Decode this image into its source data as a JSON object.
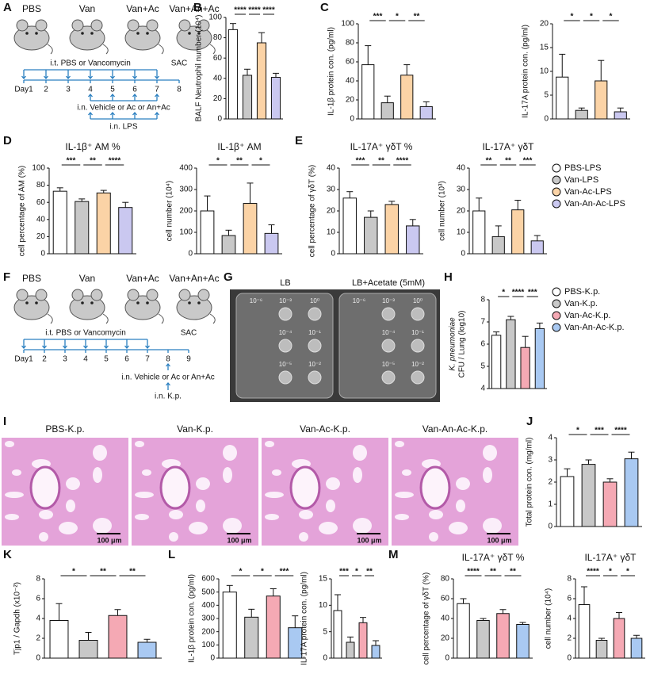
{
  "panel_letters": [
    "A",
    "B",
    "C",
    "D",
    "E",
    "F",
    "G",
    "H",
    "I",
    "J",
    "K",
    "L",
    "M"
  ],
  "scheme_a": {
    "groups": [
      "PBS",
      "Van",
      "Van+Ac",
      "Van+An+Ac"
    ],
    "it_text": "i.t. PBS or Vancomycin",
    "end": "SAC",
    "days": [
      "Day1",
      "2",
      "3",
      "4",
      "5",
      "6",
      "7",
      "8"
    ],
    "in_text": "i.n. Vehicle or Ac or An+Ac",
    "challenge": "i.n. LPS"
  },
  "scheme_f": {
    "groups": [
      "PBS",
      "Van",
      "Van+Ac",
      "Van+An+Ac"
    ],
    "it_text": "i.t. PBS or Vancomycin",
    "end": "SAC",
    "days": [
      "Day1",
      "2",
      "3",
      "4",
      "5",
      "6",
      "7",
      "8",
      "9"
    ],
    "in_text": "i.n. Vehicle or Ac or An+Ac",
    "challenge": "i.n. K.p."
  },
  "plates": {
    "titles": [
      "LB",
      "LB+Acetate (5mM)"
    ],
    "left": [
      "10⁻⁶",
      "10⁻³",
      "10⁰",
      "10⁻⁴",
      "10⁻¹",
      "10⁻⁵",
      "10⁻²"
    ],
    "right": [
      "10⁻⁶",
      "10⁻³",
      "10⁰",
      "10⁻⁴",
      "10⁻¹",
      "10⁻⁵",
      "10⁻²"
    ]
  },
  "histology": {
    "titles": [
      "PBS-K.p.",
      "Van-K.p.",
      "Van-Ac-K.p.",
      "Van-An-Ac-K.p."
    ],
    "scale": "100 μm"
  },
  "legend_lps": {
    "names": [
      "PBS-LPS",
      "Van-LPS",
      "Van-Ac-LPS",
      "Van-An-Ac-LPS"
    ],
    "colors": [
      "#ffffff",
      "#c8c8c8",
      "#fbd3a6",
      "#cac8f0"
    ]
  },
  "legend_kp": {
    "names": [
      "PBS-K.p.",
      "Van-K.p.",
      "Van-Ac-K.p.",
      "Van-An-Ac-K.p."
    ],
    "colors": [
      "#ffffff",
      "#c8c8c8",
      "#f5a9b4",
      "#a9c9f2"
    ]
  },
  "chart_data": [
    {
      "type": "bar",
      "ylabel": "BALF Neutrophil number (10⁴)",
      "values": [
        88,
        43,
        75,
        41
      ],
      "errors": [
        6,
        6,
        10,
        4
      ],
      "colors": [
        "#ffffff",
        "#c8c8c8",
        "#fbd3a6",
        "#cac8f0"
      ],
      "ylim": [
        0,
        100
      ],
      "yticks": [
        0,
        20,
        40,
        60,
        80,
        100
      ],
      "significance": [
        "****",
        "****",
        "****"
      ]
    },
    {
      "type": "bar",
      "ylabel": "IL-1β protein con. (pg/ml)",
      "values": [
        57,
        17,
        46,
        13
      ],
      "errors": [
        20,
        7,
        11,
        5
      ],
      "colors": [
        "#ffffff",
        "#c8c8c8",
        "#fbd3a6",
        "#cac8f0"
      ],
      "ylim": [
        0,
        100
      ],
      "yticks": [
        0,
        20,
        40,
        60,
        80,
        100
      ],
      "significance": [
        "***",
        "*",
        "**"
      ]
    },
    {
      "type": "bar",
      "ylabel": "IL-17A protein con. (pg/ml)",
      "values": [
        8.8,
        1.8,
        8,
        1.5
      ],
      "errors": [
        4.8,
        0.5,
        4.3,
        0.8
      ],
      "colors": [
        "#ffffff",
        "#c8c8c8",
        "#fbd3a6",
        "#cac8f0"
      ],
      "ylim": [
        0,
        20
      ],
      "yticks": [
        0,
        5,
        10,
        15,
        20
      ],
      "significance": [
        "*",
        "*",
        "*"
      ]
    },
    {
      "type": "bar",
      "title": "IL-1β⁺ AM %",
      "ylabel": "cell percentage of AM (%)",
      "values": [
        73,
        61,
        71,
        54
      ],
      "errors": [
        4,
        3,
        3,
        6
      ],
      "colors": [
        "#ffffff",
        "#c8c8c8",
        "#fbd3a6",
        "#cac8f0"
      ],
      "ylim": [
        0,
        100
      ],
      "yticks": [
        0,
        20,
        40,
        60,
        80,
        100
      ],
      "significance": [
        "***",
        "**",
        "****"
      ]
    },
    {
      "type": "bar",
      "title": "IL-1β⁺ AM",
      "ylabel": "cell number (10⁴)",
      "values": [
        200,
        85,
        235,
        95
      ],
      "errors": [
        70,
        25,
        95,
        40
      ],
      "colors": [
        "#ffffff",
        "#c8c8c8",
        "#fbd3a6",
        "#cac8f0"
      ],
      "ylim": [
        0,
        400
      ],
      "yticks": [
        0,
        100,
        200,
        300,
        400
      ],
      "significance": [
        "*",
        "**",
        "*"
      ]
    },
    {
      "type": "bar",
      "title": "IL-17A⁺ γδT %",
      "ylabel": "cell percentage of γδT (%)",
      "values": [
        26,
        17,
        23,
        13
      ],
      "errors": [
        3,
        3,
        1.5,
        3
      ],
      "colors": [
        "#ffffff",
        "#c8c8c8",
        "#fbd3a6",
        "#cac8f0"
      ],
      "ylim": [
        0,
        40
      ],
      "yticks": [
        0,
        10,
        20,
        30,
        40
      ],
      "significance": [
        "***",
        "**",
        "****"
      ]
    },
    {
      "type": "bar",
      "title": "IL-17A⁺ γδT",
      "ylabel": "cell number (10³)",
      "values": [
        20,
        8,
        20.5,
        6
      ],
      "errors": [
        6,
        5,
        4.5,
        2.5
      ],
      "colors": [
        "#ffffff",
        "#c8c8c8",
        "#fbd3a6",
        "#cac8f0"
      ],
      "ylim": [
        0,
        40
      ],
      "yticks": [
        0,
        10,
        20,
        30,
        40
      ],
      "significance": [
        "**",
        "**",
        "***"
      ]
    },
    {
      "type": "bar",
      "ylabel": [
        "K. pneumoniae",
        "CFU / Lung (log10)"
      ],
      "values": [
        6.4,
        7.1,
        5.85,
        6.7
      ],
      "errors": [
        0.15,
        0.15,
        0.5,
        0.25
      ],
      "colors": [
        "#ffffff",
        "#c8c8c8",
        "#f5a9b4",
        "#a9c9f2"
      ],
      "ylim": [
        4,
        8
      ],
      "yticks": [
        4,
        5,
        6,
        7,
        8
      ],
      "significance": [
        "*",
        "****",
        "***"
      ]
    },
    {
      "type": "bar",
      "ylabel": "Total protein con. (mg/ml)",
      "values": [
        2.25,
        2.8,
        2.0,
        3.05
      ],
      "errors": [
        0.35,
        0.2,
        0.15,
        0.3
      ],
      "colors": [
        "#ffffff",
        "#c8c8c8",
        "#f5a9b4",
        "#a9c9f2"
      ],
      "ylim": [
        0,
        4
      ],
      "yticks": [
        0,
        1,
        2,
        3,
        4
      ],
      "significance": [
        "*",
        "***",
        "****"
      ]
    },
    {
      "type": "bar",
      "ylabel": "Tjp1 / Gapdh (x10⁻²)",
      "values": [
        3.8,
        1.8,
        4.3,
        1.6
      ],
      "errors": [
        1.7,
        0.8,
        0.6,
        0.3
      ],
      "colors": [
        "#ffffff",
        "#c8c8c8",
        "#f5a9b4",
        "#a9c9f2"
      ],
      "ylim": [
        0,
        8
      ],
      "yticks": [
        0,
        2,
        4,
        6,
        8
      ],
      "significance": [
        "*",
        "**",
        "**"
      ]
    },
    {
      "type": "bar",
      "ylabel": "IL-1β protein con. (pg/ml)",
      "values": [
        500,
        310,
        470,
        230
      ],
      "errors": [
        50,
        60,
        55,
        90
      ],
      "colors": [
        "#ffffff",
        "#c8c8c8",
        "#f5a9b4",
        "#a9c9f2"
      ],
      "ylim": [
        0,
        600
      ],
      "yticks": [
        0,
        100,
        200,
        300,
        400,
        500,
        600
      ],
      "significance": [
        "*",
        "*",
        "***"
      ]
    },
    {
      "type": "bar",
      "ylabel": "IL-17A protein con. (pg/ml)",
      "values": [
        9,
        3,
        6.7,
        2.4
      ],
      "errors": [
        3,
        1,
        1,
        0.9
      ],
      "colors": [
        "#ffffff",
        "#c8c8c8",
        "#f5a9b4",
        "#a9c9f2"
      ],
      "ylim": [
        0,
        15
      ],
      "yticks": [
        0,
        5,
        10,
        15
      ],
      "significance": [
        "***",
        "*",
        "**"
      ]
    },
    {
      "type": "bar",
      "title": "IL-17A⁺ γδT %",
      "ylabel": "cell percentage of γδT (%)",
      "values": [
        55,
        38,
        45,
        34
      ],
      "errors": [
        5,
        2,
        4,
        2
      ],
      "colors": [
        "#ffffff",
        "#c8c8c8",
        "#f5a9b4",
        "#a9c9f2"
      ],
      "ylim": [
        0,
        80
      ],
      "yticks": [
        0,
        20,
        40,
        60,
        80
      ],
      "significance": [
        "****",
        "**",
        "**"
      ]
    },
    {
      "type": "bar",
      "title": "IL-17A⁺ γδT",
      "ylabel": "cell number (10⁴)",
      "values": [
        5.4,
        1.8,
        4,
        2
      ],
      "errors": [
        1.8,
        0.2,
        0.6,
        0.3
      ],
      "colors": [
        "#ffffff",
        "#c8c8c8",
        "#f5a9b4",
        "#a9c9f2"
      ],
      "ylim": [
        0,
        8
      ],
      "yticks": [
        0,
        2,
        4,
        6,
        8
      ],
      "significance": [
        "****",
        "*",
        "*"
      ]
    }
  ]
}
